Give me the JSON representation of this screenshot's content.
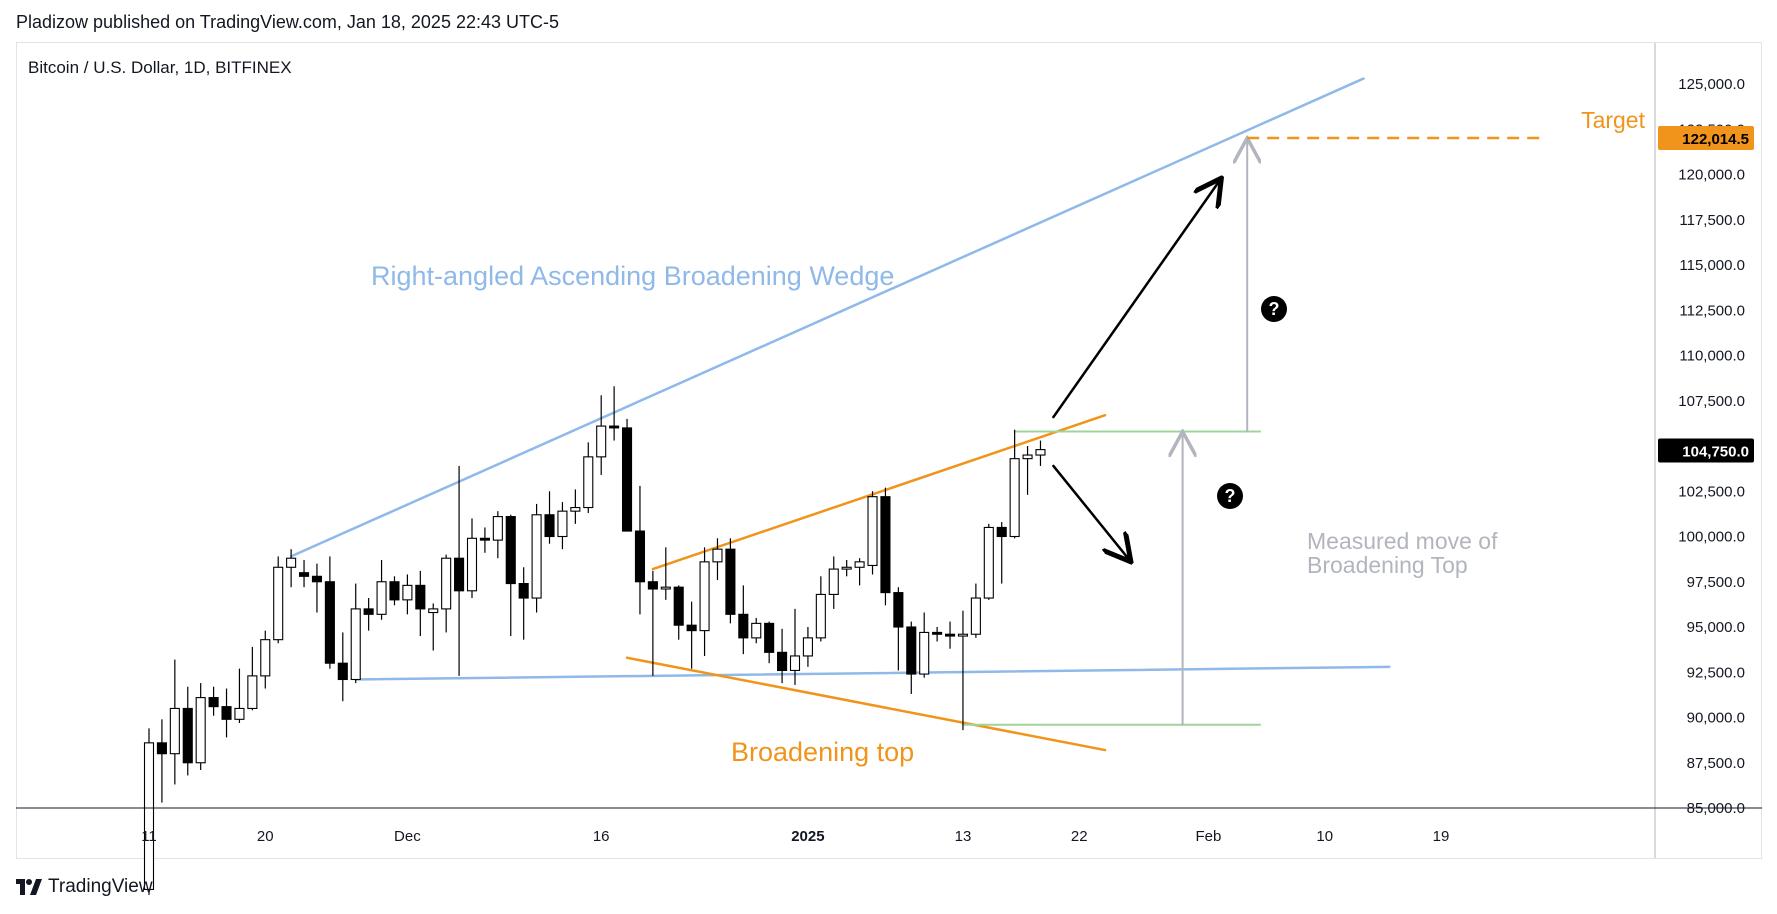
{
  "header": {
    "credit": "Pladizow published on TradingView.com, Jan 18, 2025 22:43 UTC-5"
  },
  "footer": {
    "brand": "TradingView"
  },
  "chart_data": {
    "type": "candlestick",
    "title": "Bitcoin / U.S. Dollar, 1D, BITFINEX",
    "ylim": [
      84600,
      126800
    ],
    "y_ticks": [
      85000,
      87500,
      90000,
      92500,
      95000,
      97500,
      100000,
      102500,
      105000,
      107500,
      110000,
      112500,
      115000,
      117500,
      120000,
      122500,
      125000
    ],
    "y_tick_labels": [
      "85,000.0",
      "87,500.0",
      "90,000.0",
      "92,500.0",
      "95,000.0",
      "97,500.0",
      "100,000.0",
      "102,500.0",
      "105,000.0",
      "107,500.0",
      "110,000.0",
      "112,500.0",
      "115,000.0",
      "117,500.0",
      "120,000.0",
      "122,500.0",
      "125,000.0"
    ],
    "x_ticks": [
      {
        "date": "2024-11-11",
        "label": "11"
      },
      {
        "date": "2024-11-20",
        "label": "20"
      },
      {
        "date": "2024-12-01",
        "label": "Dec"
      },
      {
        "date": "2024-12-16",
        "label": "16"
      },
      {
        "date": "2025-01-01",
        "label": "2025"
      },
      {
        "date": "2025-01-13",
        "label": "13"
      },
      {
        "date": "2025-01-22",
        "label": "22"
      },
      {
        "date": "2025-02-01",
        "label": "Feb"
      },
      {
        "date": "2025-02-10",
        "label": "10"
      },
      {
        "date": "2025-02-19",
        "label": "19"
      }
    ],
    "candles": [
      {
        "date": "2024-11-11",
        "o": 80500,
        "h": 89400,
        "l": 80200,
        "c": 88600
      },
      {
        "date": "2024-11-12",
        "o": 88600,
        "h": 89900,
        "l": 85300,
        "c": 88000
      },
      {
        "date": "2024-11-13",
        "o": 88000,
        "h": 93200,
        "l": 86300,
        "c": 90500
      },
      {
        "date": "2024-11-14",
        "o": 90500,
        "h": 91700,
        "l": 86800,
        "c": 87500
      },
      {
        "date": "2024-11-15",
        "o": 87500,
        "h": 91900,
        "l": 87100,
        "c": 91100
      },
      {
        "date": "2024-11-16",
        "o": 91100,
        "h": 91700,
        "l": 90100,
        "c": 90600
      },
      {
        "date": "2024-11-17",
        "o": 90600,
        "h": 91600,
        "l": 88900,
        "c": 89900
      },
      {
        "date": "2024-11-18",
        "o": 89900,
        "h": 92700,
        "l": 89700,
        "c": 90500
      },
      {
        "date": "2024-11-19",
        "o": 90500,
        "h": 93900,
        "l": 90400,
        "c": 92300
      },
      {
        "date": "2024-11-20",
        "o": 92300,
        "h": 94800,
        "l": 91600,
        "c": 94300
      },
      {
        "date": "2024-11-21",
        "o": 94300,
        "h": 98900,
        "l": 94100,
        "c": 98300
      },
      {
        "date": "2024-11-22",
        "o": 98300,
        "h": 99300,
        "l": 97200,
        "c": 98800
      },
      {
        "date": "2024-11-23",
        "o": 98000,
        "h": 98700,
        "l": 97200,
        "c": 97800
      },
      {
        "date": "2024-11-24",
        "o": 97800,
        "h": 98500,
        "l": 95800,
        "c": 97500
      },
      {
        "date": "2024-11-25",
        "o": 97500,
        "h": 98900,
        "l": 92700,
        "c": 93000
      },
      {
        "date": "2024-11-26",
        "o": 93000,
        "h": 94700,
        "l": 90900,
        "c": 92100
      },
      {
        "date": "2024-11-27",
        "o": 92100,
        "h": 97400,
        "l": 91900,
        "c": 96000
      },
      {
        "date": "2024-11-28",
        "o": 96000,
        "h": 96600,
        "l": 94800,
        "c": 95700
      },
      {
        "date": "2024-11-29",
        "o": 95700,
        "h": 98700,
        "l": 95400,
        "c": 97500
      },
      {
        "date": "2024-11-30",
        "o": 97500,
        "h": 97800,
        "l": 96200,
        "c": 96500
      },
      {
        "date": "2024-12-01",
        "o": 96500,
        "h": 97900,
        "l": 95700,
        "c": 97300
      },
      {
        "date": "2024-12-02",
        "o": 97300,
        "h": 98100,
        "l": 94500,
        "c": 96000
      },
      {
        "date": "2024-12-03",
        "o": 95800,
        "h": 96300,
        "l": 93700,
        "c": 96000
      },
      {
        "date": "2024-12-04",
        "o": 96000,
        "h": 99000,
        "l": 94700,
        "c": 98800
      },
      {
        "date": "2024-12-05",
        "o": 98800,
        "h": 103900,
        "l": 92300,
        "c": 97000
      },
      {
        "date": "2024-12-06",
        "o": 97000,
        "h": 101000,
        "l": 96600,
        "c": 99900
      },
      {
        "date": "2024-12-07",
        "o": 99900,
        "h": 100500,
        "l": 99100,
        "c": 99800
      },
      {
        "date": "2024-12-08",
        "o": 99800,
        "h": 101400,
        "l": 98800,
        "c": 101100
      },
      {
        "date": "2024-12-09",
        "o": 101100,
        "h": 101200,
        "l": 94500,
        "c": 97400
      },
      {
        "date": "2024-12-10",
        "o": 97400,
        "h": 98300,
        "l": 94300,
        "c": 96600
      },
      {
        "date": "2024-12-11",
        "o": 96600,
        "h": 101800,
        "l": 95800,
        "c": 101200
      },
      {
        "date": "2024-12-12",
        "o": 101200,
        "h": 102500,
        "l": 99600,
        "c": 100000
      },
      {
        "date": "2024-12-13",
        "o": 100000,
        "h": 101900,
        "l": 99300,
        "c": 101400
      },
      {
        "date": "2024-12-14",
        "o": 101400,
        "h": 102600,
        "l": 100700,
        "c": 101600
      },
      {
        "date": "2024-12-15",
        "o": 101600,
        "h": 105200,
        "l": 101300,
        "c": 104400
      },
      {
        "date": "2024-12-16",
        "o": 104400,
        "h": 107800,
        "l": 103400,
        "c": 106100
      },
      {
        "date": "2024-12-17",
        "o": 106100,
        "h": 108300,
        "l": 105300,
        "c": 106000
      },
      {
        "date": "2024-12-18",
        "o": 106000,
        "h": 106500,
        "l": 100400,
        "c": 100300
      },
      {
        "date": "2024-12-19",
        "o": 100300,
        "h": 102800,
        "l": 95700,
        "c": 97500
      },
      {
        "date": "2024-12-20",
        "o": 97500,
        "h": 98100,
        "l": 92300,
        "c": 97100
      },
      {
        "date": "2024-12-21",
        "o": 97100,
        "h": 99400,
        "l": 96500,
        "c": 97200
      },
      {
        "date": "2024-12-22",
        "o": 97200,
        "h": 97300,
        "l": 94300,
        "c": 95100
      },
      {
        "date": "2024-12-23",
        "o": 95100,
        "h": 96400,
        "l": 92700,
        "c": 94800
      },
      {
        "date": "2024-12-24",
        "o": 94800,
        "h": 99400,
        "l": 93400,
        "c": 98600
      },
      {
        "date": "2024-12-25",
        "o": 98600,
        "h": 99900,
        "l": 97600,
        "c": 99300
      },
      {
        "date": "2024-12-26",
        "o": 99300,
        "h": 99900,
        "l": 95200,
        "c": 95700
      },
      {
        "date": "2024-12-27",
        "o": 95700,
        "h": 97300,
        "l": 93500,
        "c": 94400
      },
      {
        "date": "2024-12-28",
        "o": 94400,
        "h": 95500,
        "l": 94100,
        "c": 95200
      },
      {
        "date": "2024-12-29",
        "o": 95200,
        "h": 95300,
        "l": 93000,
        "c": 93600
      },
      {
        "date": "2024-12-30",
        "o": 93600,
        "h": 94900,
        "l": 91900,
        "c": 92600
      },
      {
        "date": "2024-12-31",
        "o": 92600,
        "h": 96000,
        "l": 91800,
        "c": 93400
      },
      {
        "date": "2025-01-01",
        "o": 93400,
        "h": 95000,
        "l": 92800,
        "c": 94400
      },
      {
        "date": "2025-01-02",
        "o": 94400,
        "h": 97800,
        "l": 94200,
        "c": 96800
      },
      {
        "date": "2025-01-03",
        "o": 96800,
        "h": 98900,
        "l": 96000,
        "c": 98200
      },
      {
        "date": "2025-01-04",
        "o": 98200,
        "h": 98700,
        "l": 97800,
        "c": 98300
      },
      {
        "date": "2025-01-05",
        "o": 98300,
        "h": 98800,
        "l": 97300,
        "c": 98600
      },
      {
        "date": "2025-01-06",
        "o": 98400,
        "h": 102500,
        "l": 97900,
        "c": 102200
      },
      {
        "date": "2025-01-07",
        "o": 102200,
        "h": 102700,
        "l": 96200,
        "c": 96900
      },
      {
        "date": "2025-01-08",
        "o": 96900,
        "h": 97200,
        "l": 92600,
        "c": 95000
      },
      {
        "date": "2025-01-09",
        "o": 95000,
        "h": 95300,
        "l": 91300,
        "c": 92400
      },
      {
        "date": "2025-01-10",
        "o": 92400,
        "h": 95800,
        "l": 92200,
        "c": 94700
      },
      {
        "date": "2025-01-11",
        "o": 94700,
        "h": 95000,
        "l": 94200,
        "c": 94600
      },
      {
        "date": "2025-01-12",
        "o": 94600,
        "h": 95300,
        "l": 93800,
        "c": 94500
      },
      {
        "date": "2025-01-13",
        "o": 94500,
        "h": 95900,
        "l": 89300,
        "c": 94600
      },
      {
        "date": "2025-01-14",
        "o": 94600,
        "h": 97400,
        "l": 94400,
        "c": 96600
      },
      {
        "date": "2025-01-15",
        "o": 96600,
        "h": 100700,
        "l": 96500,
        "c": 100500
      },
      {
        "date": "2025-01-16",
        "o": 100500,
        "h": 100800,
        "l": 97400,
        "c": 100000
      },
      {
        "date": "2025-01-17",
        "o": 100000,
        "h": 105900,
        "l": 99900,
        "c": 104300
      },
      {
        "date": "2025-01-18",
        "o": 104300,
        "h": 105000,
        "l": 102300,
        "c": 104500
      },
      {
        "date": "2025-01-19",
        "o": 104500,
        "h": 105300,
        "l": 103900,
        "c": 104800
      }
    ],
    "last_price": 104750,
    "last_price_label": "104,750.0",
    "target_price": 122014.5,
    "target_price_label": "122,014.5",
    "annotations": {
      "wedge_label": "Right-angled Ascending Broadening Wedge",
      "broadening_top_label": "Broadening top",
      "measured_move_line1": "Measured move of",
      "measured_move_line2": "Broadening Top",
      "target_label": "Target",
      "question_mark": "?"
    },
    "drawings": {
      "wedge_upper": [
        [
          "2024-11-22",
          98900
        ],
        [
          "2025-02-13",
          125300
        ]
      ],
      "wedge_lower": [
        [
          "2024-11-27",
          92100
        ],
        [
          "2025-02-15",
          92800
        ]
      ],
      "top_upper": [
        [
          "2024-12-20",
          98200
        ],
        [
          "2025-01-24",
          106700
        ]
      ],
      "top_lower": [
        [
          "2024-12-18",
          93300
        ],
        [
          "2025-01-24",
          88200
        ]
      ],
      "measure_top": [
        [
          "2025-01-17",
          105800
        ],
        [
          "2025-02-05",
          105800
        ]
      ],
      "measure_bottom": [
        [
          "2025-01-13",
          89600
        ],
        [
          "2025-02-05",
          89600
        ]
      ],
      "measure_arrow_short": [
        [
          "2025-01-30",
          89600
        ],
        [
          "2025-01-30",
          105800
        ]
      ],
      "measure_arrow_target": [
        [
          "2025-02-04",
          105800
        ],
        [
          "2025-02-04",
          122014.5
        ]
      ],
      "target_dashed": [
        [
          "2025-02-04",
          122014.5
        ],
        [
          "2025-02-27",
          122014.5
        ]
      ],
      "scenario_up_arrow": [
        [
          "2025-01-20",
          106600
        ],
        [
          "2025-02-02",
          119800
        ]
      ],
      "scenario_down_arrow": [
        [
          "2025-01-20",
          103900
        ],
        [
          "2025-01-26",
          98600
        ]
      ]
    },
    "colors": {
      "wedge": "#8fb9e8",
      "broadening_top": "#f0941b",
      "measure_lines": "#9fd49c",
      "measure_arrow": "#b2b5be",
      "measure_text": "#b2b5be",
      "target": "#f0941b",
      "last_price_bg": "#000000",
      "axis_text": "#131722",
      "candle_up_fill": "#ffffff",
      "candle_down_fill": "#000000",
      "candle_border": "#000000"
    }
  }
}
